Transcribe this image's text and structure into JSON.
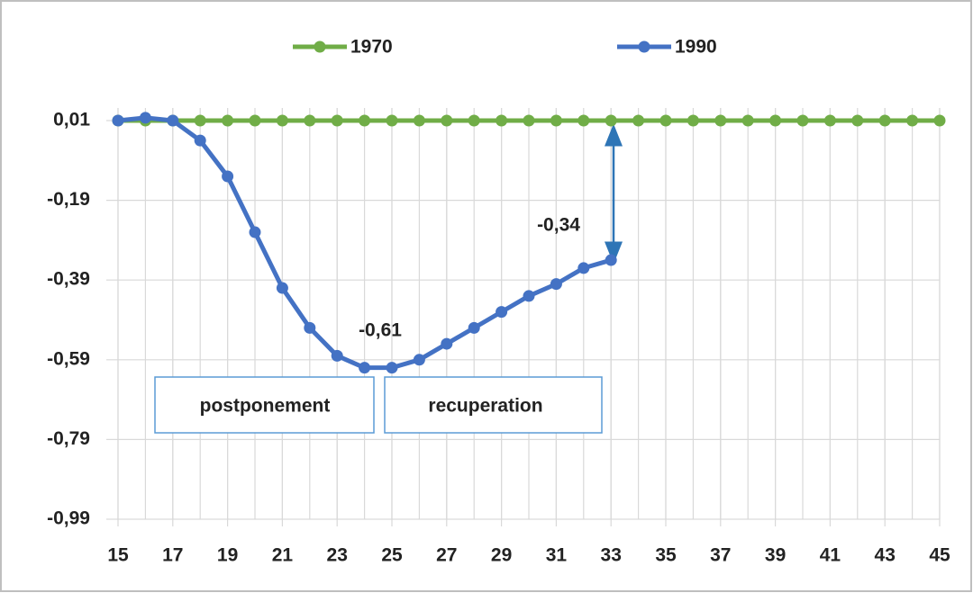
{
  "chart_data": {
    "type": "line",
    "series": [
      {
        "name": "1970",
        "color": "#70ad47",
        "x": [
          15,
          16,
          17,
          18,
          19,
          20,
          21,
          22,
          23,
          24,
          25,
          26,
          27,
          28,
          29,
          30,
          31,
          32,
          33,
          34,
          35,
          36,
          37,
          38,
          39,
          40,
          41,
          42,
          43,
          44,
          45
        ],
        "values": [
          0.01,
          0.01,
          0.01,
          0.01,
          0.01,
          0.01,
          0.01,
          0.01,
          0.01,
          0.01,
          0.01,
          0.01,
          0.01,
          0.01,
          0.01,
          0.01,
          0.01,
          0.01,
          0.01,
          0.01,
          0.01,
          0.01,
          0.01,
          0.01,
          0.01,
          0.01,
          0.01,
          0.01,
          0.01,
          0.01,
          0.01
        ]
      },
      {
        "name": "1990",
        "color": "#4472c4",
        "x": [
          15,
          16,
          17,
          18,
          19,
          20,
          21,
          22,
          23,
          24,
          25,
          26,
          27,
          28,
          29,
          30,
          31,
          32,
          33
        ],
        "values": [
          0.01,
          0.017,
          0.01,
          -0.04,
          -0.13,
          -0.27,
          -0.41,
          -0.51,
          -0.58,
          -0.61,
          -0.61,
          -0.59,
          -0.55,
          -0.51,
          -0.47,
          -0.43,
          -0.4,
          -0.36,
          -0.34
        ]
      }
    ],
    "xlim": [
      15,
      45
    ],
    "xticks": [
      15,
      17,
      19,
      21,
      23,
      25,
      27,
      29,
      31,
      33,
      35,
      37,
      39,
      41,
      43,
      45
    ],
    "xgrid_step": 1,
    "ylim": [
      -0.99,
      0.01
    ],
    "yticks": [
      {
        "value": 0.01,
        "label": "0,01"
      },
      {
        "value": -0.19,
        "label": "-0,19"
      },
      {
        "value": -0.39,
        "label": "-0,39"
      },
      {
        "value": -0.59,
        "label": "-0,59"
      },
      {
        "value": -0.79,
        "label": "-0,79"
      },
      {
        "value": -0.99,
        "label": "-0,99"
      }
    ],
    "grid": true,
    "annotations": [
      "-0,61",
      "-0,34",
      "postponement",
      "recuperation"
    ]
  }
}
